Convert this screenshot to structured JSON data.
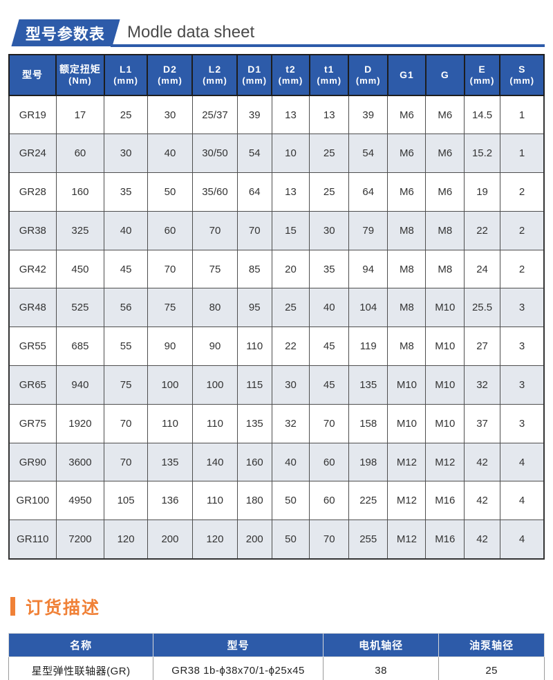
{
  "section1": {
    "badge": "型号参数表",
    "title": "Modle data sheet"
  },
  "main_table": {
    "headers": [
      {
        "line1": "型号",
        "line2": ""
      },
      {
        "line1": "额定扭矩",
        "line2": "(Nm)"
      },
      {
        "line1": "L1",
        "line2": "(mm)"
      },
      {
        "line1": "D2",
        "line2": "(mm)"
      },
      {
        "line1": "L2",
        "line2": "(mm)"
      },
      {
        "line1": "D1",
        "line2": "(mm)"
      },
      {
        "line1": "t2",
        "line2": "(mm)"
      },
      {
        "line1": "t1",
        "line2": "(mm)"
      },
      {
        "line1": "D",
        "line2": "(mm)"
      },
      {
        "line1": "G1",
        "line2": ""
      },
      {
        "line1": "G",
        "line2": ""
      },
      {
        "line1": "E",
        "line2": "(mm)"
      },
      {
        "line1": "S",
        "line2": "(mm)"
      }
    ],
    "rows": [
      [
        "GR19",
        "17",
        "25",
        "30",
        "25/37",
        "39",
        "13",
        "13",
        "39",
        "M6",
        "M6",
        "14.5",
        "1"
      ],
      [
        "GR24",
        "60",
        "30",
        "40",
        "30/50",
        "54",
        "10",
        "25",
        "54",
        "M6",
        "M6",
        "15.2",
        "1"
      ],
      [
        "GR28",
        "160",
        "35",
        "50",
        "35/60",
        "64",
        "13",
        "25",
        "64",
        "M6",
        "M6",
        "19",
        "2"
      ],
      [
        "GR38",
        "325",
        "40",
        "60",
        "70",
        "70",
        "15",
        "30",
        "79",
        "M8",
        "M8",
        "22",
        "2"
      ],
      [
        "GR42",
        "450",
        "45",
        "70",
        "75",
        "85",
        "20",
        "35",
        "94",
        "M8",
        "M8",
        "24",
        "2"
      ],
      [
        "GR48",
        "525",
        "56",
        "75",
        "80",
        "95",
        "25",
        "40",
        "104",
        "M8",
        "M10",
        "25.5",
        "3"
      ],
      [
        "GR55",
        "685",
        "55",
        "90",
        "90",
        "110",
        "22",
        "45",
        "119",
        "M8",
        "M10",
        "27",
        "3"
      ],
      [
        "GR65",
        "940",
        "75",
        "100",
        "100",
        "115",
        "30",
        "45",
        "135",
        "M10",
        "M10",
        "32",
        "3"
      ],
      [
        "GR75",
        "1920",
        "70",
        "110",
        "110",
        "135",
        "32",
        "70",
        "158",
        "M10",
        "M10",
        "37",
        "3"
      ],
      [
        "GR90",
        "3600",
        "70",
        "135",
        "140",
        "160",
        "40",
        "60",
        "198",
        "M12",
        "M12",
        "42",
        "4"
      ],
      [
        "GR100",
        "4950",
        "105",
        "136",
        "110",
        "180",
        "50",
        "60",
        "225",
        "M12",
        "M16",
        "42",
        "4"
      ],
      [
        "GR110",
        "7200",
        "120",
        "200",
        "120",
        "200",
        "50",
        "70",
        "255",
        "M12",
        "M16",
        "42",
        "4"
      ]
    ]
  },
  "section2": {
    "title": "订货描述"
  },
  "order_table": {
    "headers": [
      "名称",
      "型号",
      "电机轴径",
      "油泵轴径"
    ],
    "rows": [
      [
        "星型弹性联轴器(GR)",
        "GR38 1b-ϕ38x70/1-ϕ25x45",
        "38",
        "25"
      ]
    ]
  },
  "colors": {
    "blue": "#2d5ba9",
    "row_alt": "#e4e8ee",
    "orange": "#f08137",
    "bottom_bar_navy": "#1f3864"
  }
}
